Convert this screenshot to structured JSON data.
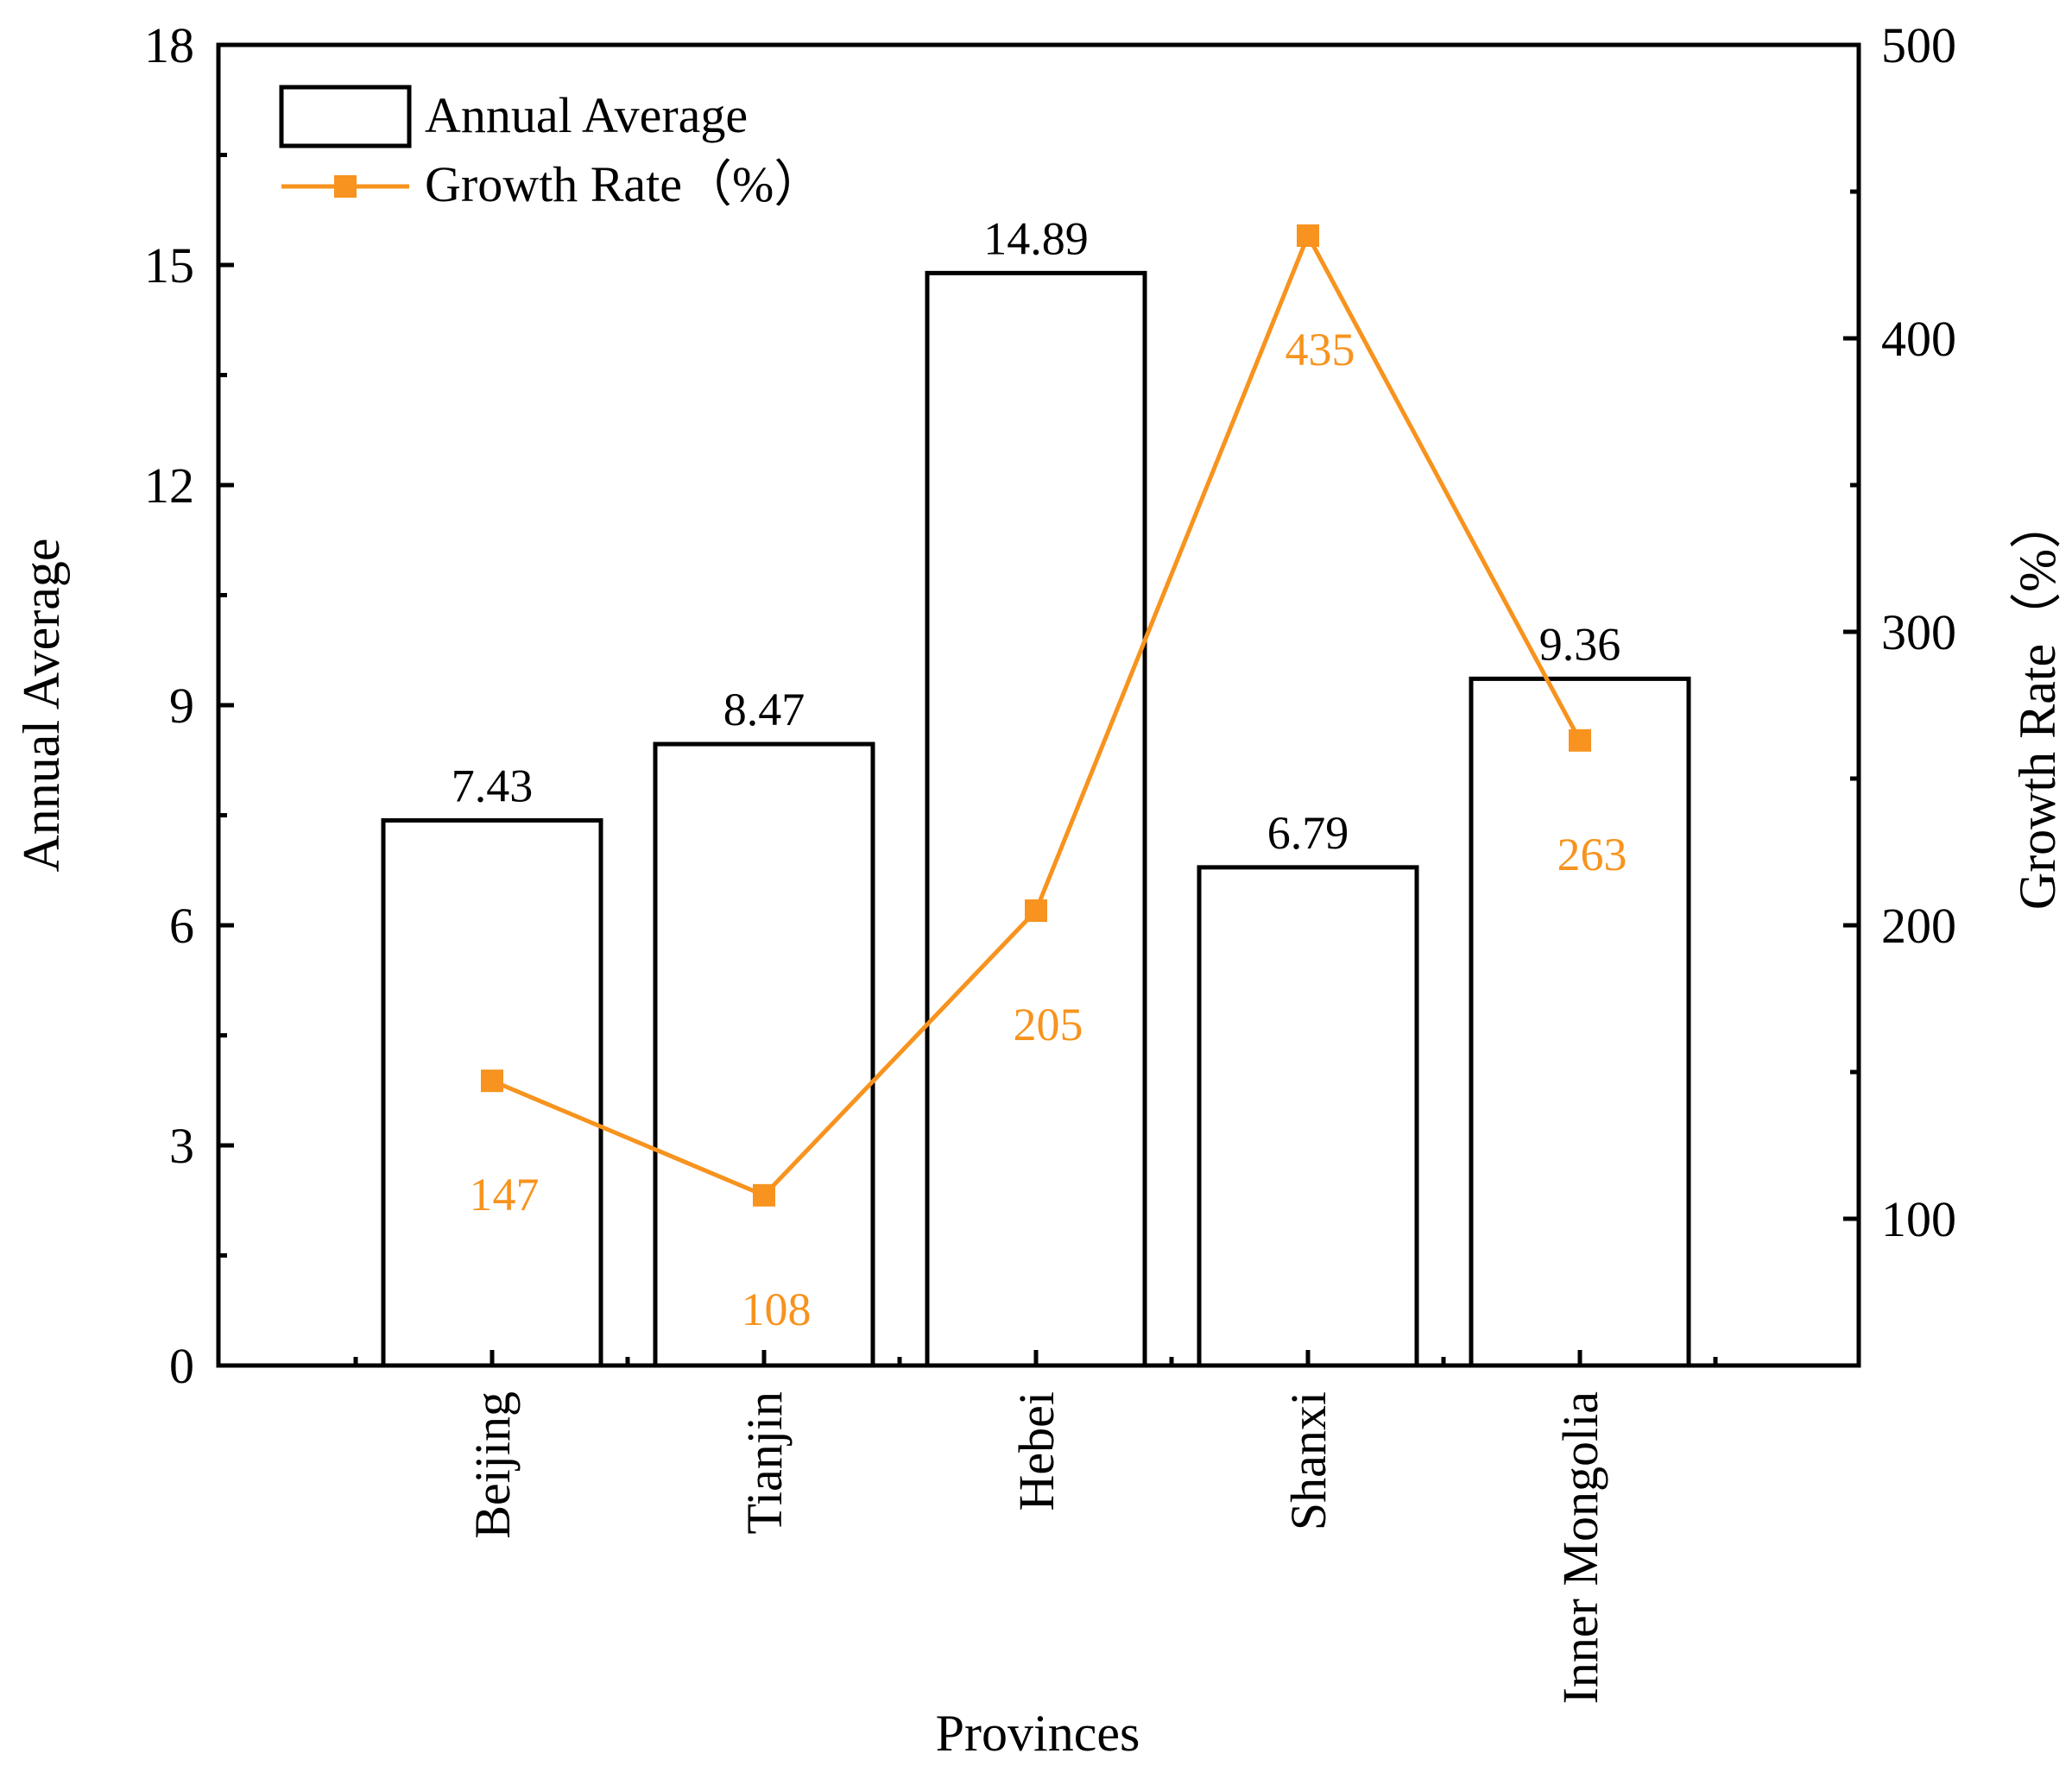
{
  "chart_data": {
    "type": "bar+line",
    "categories": [
      "Beijing",
      "Tianjin",
      "Hebei",
      "Shanxi",
      "Inner Mongolia"
    ],
    "xlabel": "Provinces",
    "series": [
      {
        "name": "Annual Average",
        "kind": "bar",
        "axis": "left",
        "values": [
          7.43,
          8.47,
          14.89,
          6.79,
          9.36
        ],
        "labels": [
          "7.43",
          "8.47",
          "14.89",
          "6.79",
          "9.36"
        ]
      },
      {
        "name": "Growth Rate（%）",
        "kind": "line",
        "axis": "right",
        "values": [
          147,
          108,
          205,
          435,
          263
        ],
        "labels": [
          "147",
          "108",
          "205",
          "435",
          "263"
        ]
      }
    ],
    "y_left": {
      "label": "Annual Average",
      "lim": [
        0,
        18
      ],
      "ticks": [
        0,
        3,
        6,
        9,
        12,
        15,
        18
      ],
      "tick_labels": [
        "0",
        "3",
        "6",
        "9",
        "12",
        "15",
        "18"
      ]
    },
    "y_right": {
      "label": "Growth Rate（%）",
      "lim": [
        50,
        500
      ],
      "ticks": [
        100,
        200,
        300,
        400,
        500
      ],
      "tick_labels": [
        "100",
        "200",
        "300",
        "400",
        "500"
      ]
    },
    "legend": {
      "position": "top-left",
      "entries": [
        "Annual Average",
        "Growth Rate（%）"
      ]
    },
    "colors": {
      "bar_edge": "#000000",
      "bar_fill": "#ffffff",
      "line": "#f7931e",
      "axis": "#000000"
    },
    "grid": false
  }
}
